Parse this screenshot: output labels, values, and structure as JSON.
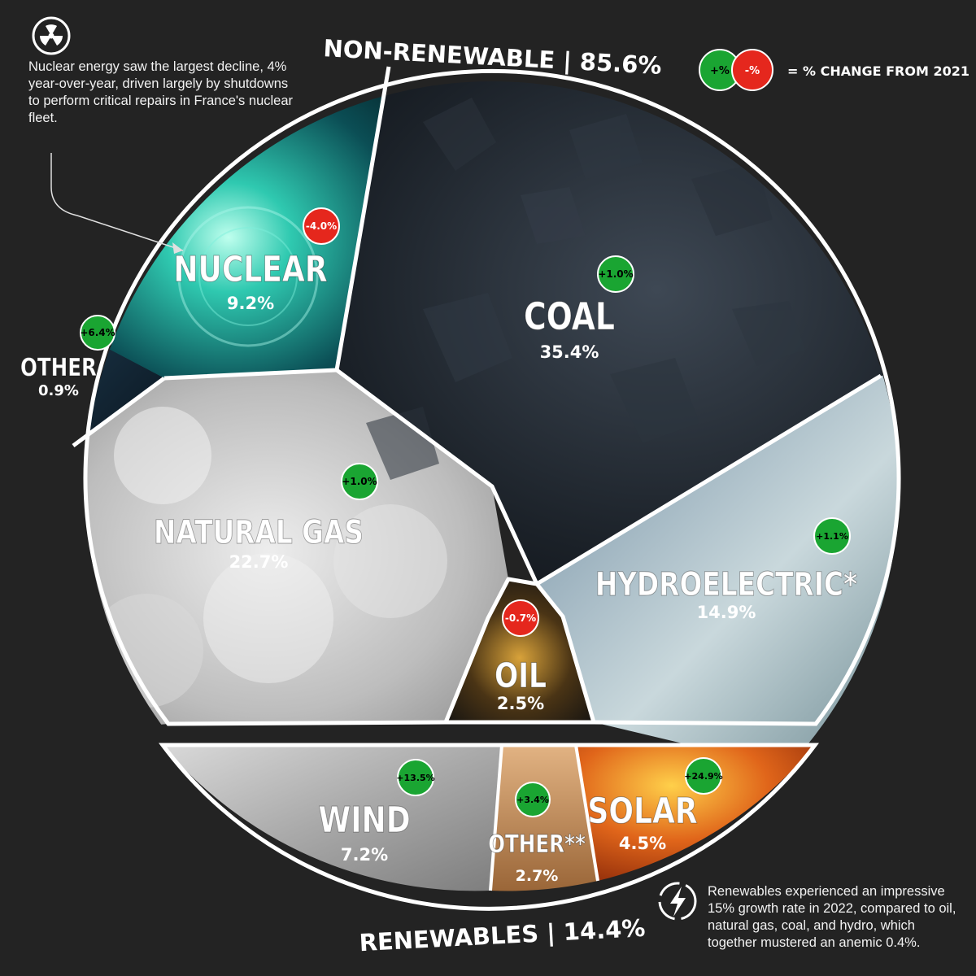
{
  "headings": {
    "non_renewable": "NON-RENEWABLE | 85.6%",
    "renewables": "RENEWABLES | 14.4%"
  },
  "legend": {
    "plus": "+%",
    "minus": "-%",
    "text": "= % CHANGE FROM 2021"
  },
  "notes": {
    "nuclear": "Nuclear energy saw the largest decline, 4% year-over-year, driven largely by shutdowns to perform critical repairs in France's nuclear fleet.",
    "renewables": "Renewables experienced an impressive 15% growth rate in 2022, compared to oil, natural gas, coal, and hydro, which together mustered an anemic 0.4%."
  },
  "icons": {
    "nuclear_note": "radiation-icon",
    "renewables_note": "lightning-bolt-icon"
  },
  "colors": {
    "background": "#232323",
    "increase": "#1aa532",
    "decrease": "#e5271d",
    "outline": "#ffffff"
  },
  "chart_data": {
    "type": "pie",
    "groups": [
      {
        "name": "NON-RENEWABLE",
        "share": 85.6
      },
      {
        "name": "RENEWABLES",
        "share": 14.4
      }
    ],
    "slices": [
      {
        "name": "COAL",
        "value": 35.4,
        "value_label": "35.4%",
        "change": "+1.0%",
        "group": "NON-RENEWABLE"
      },
      {
        "name": "NATURAL GAS",
        "value": 22.7,
        "value_label": "22.7%",
        "change": "+1.0%",
        "group": "NON-RENEWABLE"
      },
      {
        "name": "HYDROELECTRIC*",
        "value": 14.9,
        "value_label": "14.9%",
        "change": "+1.1%",
        "group": "NON-RENEWABLE"
      },
      {
        "name": "NUCLEAR",
        "value": 9.2,
        "value_label": "9.2%",
        "change": "-4.0%",
        "group": "NON-RENEWABLE"
      },
      {
        "name": "OIL",
        "value": 2.5,
        "value_label": "2.5%",
        "change": "-0.7%",
        "group": "NON-RENEWABLE"
      },
      {
        "name": "OTHER",
        "value": 0.9,
        "value_label": "0.9%",
        "change": "+6.4%",
        "group": "NON-RENEWABLE"
      },
      {
        "name": "WIND",
        "value": 7.2,
        "value_label": "7.2%",
        "change": "+13.5%",
        "group": "RENEWABLES"
      },
      {
        "name": "SOLAR",
        "value": 4.5,
        "value_label": "4.5%",
        "change": "+24.9%",
        "group": "RENEWABLES"
      },
      {
        "name": "OTHER**",
        "value": 2.7,
        "value_label": "2.7%",
        "change": "+3.4%",
        "group": "RENEWABLES"
      }
    ]
  }
}
